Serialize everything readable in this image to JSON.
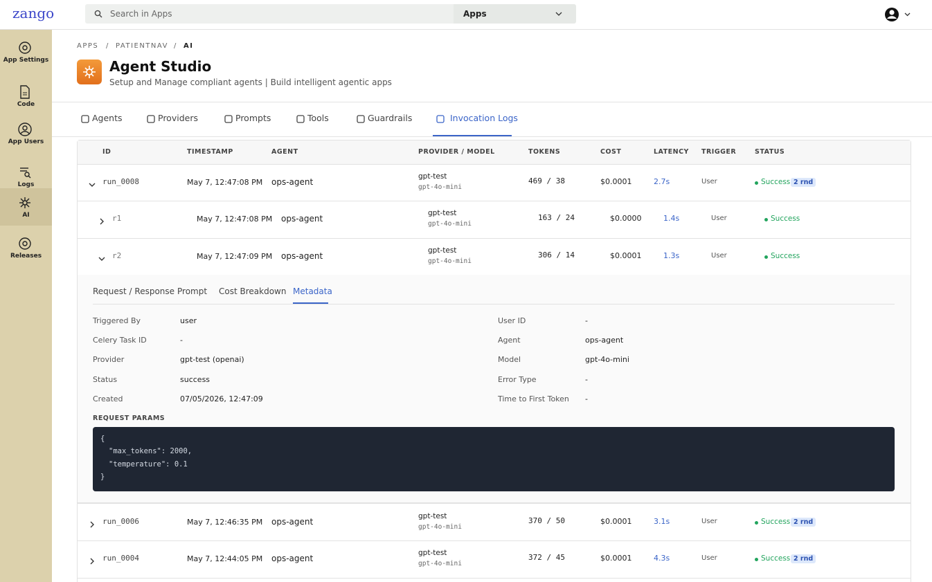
{
  "header": {
    "logo": "zango",
    "search_placeholder": "Search in Apps",
    "app_select": "Apps"
  },
  "sidebar": {
    "items": [
      "App Settings",
      "Code",
      "App Users",
      "Logs",
      "AI",
      "Releases"
    ],
    "active": 4
  },
  "breadcrumb": {
    "items": [
      "APPS",
      "PATIENTNAV",
      "AI"
    ],
    "separator": "/"
  },
  "page": {
    "title": "Agent Studio",
    "subtitle": "Setup and Manage compliant agents | Build intelligent agentic apps"
  },
  "tabs": {
    "items": [
      "Agents",
      "Providers",
      "Prompts",
      "Tools",
      "Guardrails",
      "Invocation Logs"
    ],
    "active": 5
  },
  "table": {
    "columns": [
      "ID",
      "TIMESTAMP",
      "AGENT",
      "PROVIDER / MODEL",
      "TOKENS",
      "COST",
      "LATENCY",
      "TRIGGER",
      "STATUS"
    ],
    "rows": [
      {
        "id": "run_0008",
        "timestamp": "May 7, 12:47:08 PM",
        "agent": "ops-agent",
        "provider": "gpt-test",
        "model": "gpt-4o-mini",
        "tokens": "469 / 38",
        "cost": "$0.0001",
        "latency": "2.7s",
        "trigger": "User",
        "status": "Success",
        "badge": "2 rnd",
        "expanded": true,
        "children": [
          {
            "id": "r1",
            "timestamp": "May 7, 12:47:08 PM",
            "agent": "ops-agent",
            "provider": "gpt-test",
            "model": "gpt-4o-mini",
            "tokens": "163 / 24",
            "cost": "$0.0000",
            "latency": "1.4s",
            "trigger": "User",
            "status": "Success",
            "expanded": false
          },
          {
            "id": "r2",
            "timestamp": "May 7, 12:47:09 PM",
            "agent": "ops-agent",
            "provider": "gpt-test",
            "model": "gpt-4o-mini",
            "tokens": "306 / 14",
            "cost": "$0.0001",
            "latency": "1.3s",
            "trigger": "User",
            "status": "Success",
            "expanded": true
          }
        ]
      },
      {
        "id": "run_0006",
        "timestamp": "May 7, 12:46:35 PM",
        "agent": "ops-agent",
        "provider": "gpt-test",
        "model": "gpt-4o-mini",
        "tokens": "370 / 50",
        "cost": "$0.0001",
        "latency": "3.1s",
        "trigger": "User",
        "status": "Success",
        "badge": "2 rnd",
        "expanded": false
      },
      {
        "id": "run_0004",
        "timestamp": "May 7, 12:44:05 PM",
        "agent": "ops-agent",
        "provider": "gpt-test",
        "model": "gpt-4o-mini",
        "tokens": "372 / 45",
        "cost": "$0.0001",
        "latency": "4.3s",
        "trigger": "User",
        "status": "Success",
        "badge": "2 rnd",
        "expanded": false
      }
    ]
  },
  "detail": {
    "tabs": [
      "Request / Response",
      "Prompt",
      "Cost Breakdown",
      "Metadata"
    ],
    "active": 3,
    "left": [
      [
        "Triggered By",
        "user"
      ],
      [
        "Celery Task ID",
        "-"
      ],
      [
        "Provider",
        "gpt-test (openai)"
      ],
      [
        "Status",
        "success"
      ],
      [
        "Created",
        "07/05/2026, 12:47:09"
      ]
    ],
    "right": [
      [
        "User ID",
        "-"
      ],
      [
        "Agent",
        "ops-agent"
      ],
      [
        "Model",
        "gpt-4o-mini"
      ],
      [
        "Error Type",
        "-"
      ],
      [
        "Time to First Token",
        "-"
      ]
    ],
    "params_title": "REQUEST PARAMS",
    "code": [
      {
        "text": "{",
        "indent": 0
      },
      {
        "text": "\"max_tokens\": 2000,",
        "indent": 1
      },
      {
        "text": "\"temperature\": 0.1",
        "indent": 1
      },
      {
        "text": "}",
        "indent": 0
      }
    ]
  }
}
